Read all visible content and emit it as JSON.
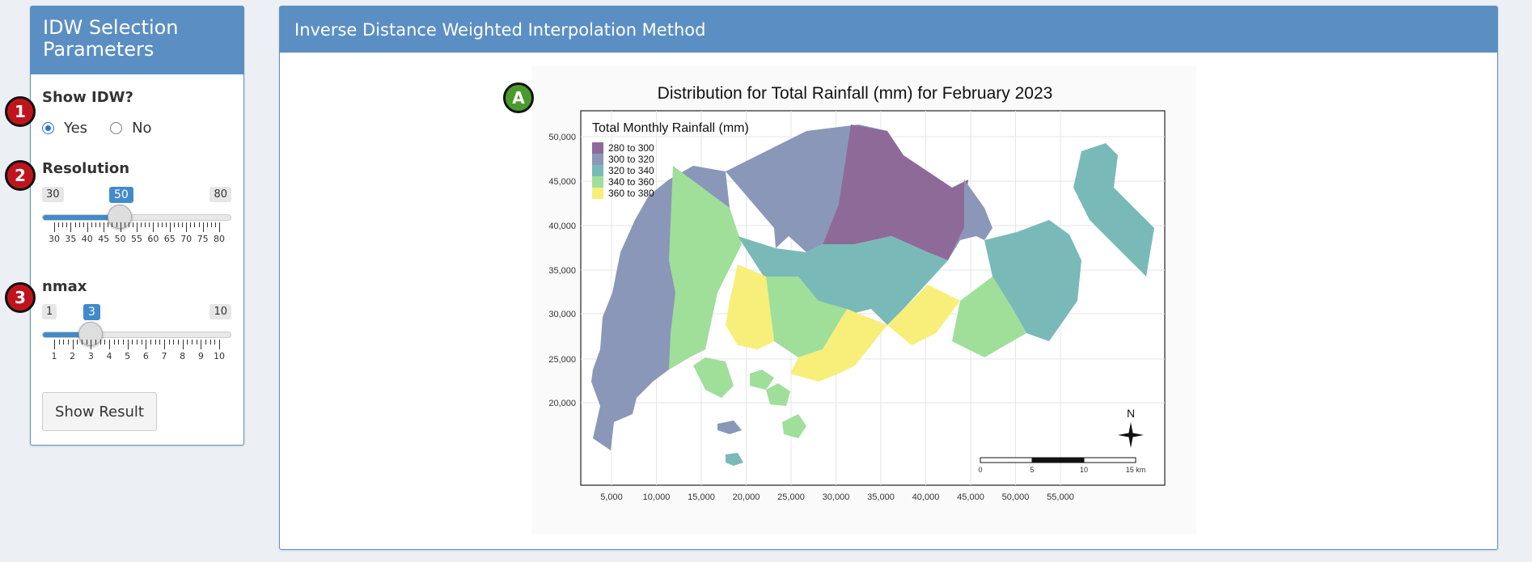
{
  "sidebar": {
    "title": "IDW Selection Parameters",
    "show_idw": {
      "label": "Show IDW?",
      "options": [
        {
          "label": "Yes",
          "checked": true
        },
        {
          "label": "No",
          "checked": false
        }
      ]
    },
    "resolution": {
      "label": "Resolution",
      "min": "30",
      "max": "80",
      "value": "50",
      "tick_labels": [
        "30",
        "35",
        "40",
        "45",
        "50",
        "55",
        "60",
        "65",
        "70",
        "75",
        "80"
      ]
    },
    "nmax": {
      "label": "nmax",
      "min": "1",
      "max": "10",
      "value": "3",
      "tick_labels": [
        "1",
        "2",
        "3",
        "4",
        "5",
        "6",
        "7",
        "8",
        "9",
        "10"
      ]
    },
    "button": "Show Result"
  },
  "markers": {
    "one": "1",
    "two": "2",
    "three": "3",
    "a": "A"
  },
  "main": {
    "title": "Inverse Distance Weighted Interpolation Method",
    "map": {
      "title": "Distribution for Total Rainfall (mm) for February 2023",
      "legend_title": "Total Monthly Rainfall (mm)",
      "legend_items": [
        {
          "label": "280 to 300",
          "color": "#8e6a99"
        },
        {
          "label": "300 to 320",
          "color": "#8a97b8"
        },
        {
          "label": "320 to 340",
          "color": "#79bab8"
        },
        {
          "label": "340 to 360",
          "color": "#9fdf9a"
        },
        {
          "label": "360 to 380",
          "color": "#f8ee7a"
        }
      ],
      "y_ticks": [
        "50,000",
        "45,000",
        "40,000",
        "35,000",
        "30,000",
        "25,000",
        "20,000"
      ],
      "x_ticks": [
        "5,000",
        "10,000",
        "15,000",
        "20,000",
        "25,000",
        "30,000",
        "35,000",
        "40,000",
        "45,000",
        "50,000",
        "55,000"
      ],
      "north_label": "N",
      "scale_labels": [
        "0",
        "5",
        "10",
        "15 km"
      ]
    }
  },
  "colors": {
    "header": "#5b8fc3",
    "accent": "#428bca",
    "marker_red": "#c0141c",
    "marker_green": "#4a9a2e"
  }
}
